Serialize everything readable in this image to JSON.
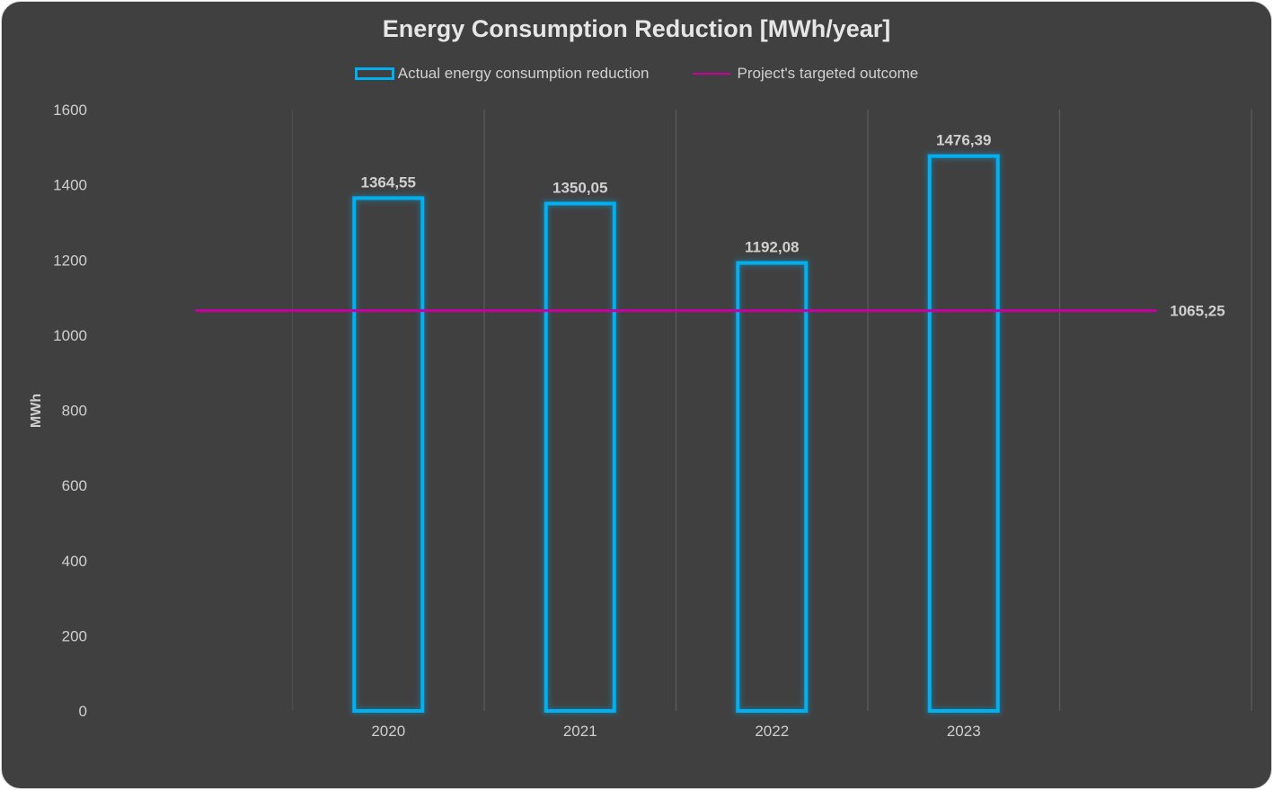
{
  "chart_data": {
    "type": "bar",
    "title": "Energy Consumption Reduction [MWh/year]",
    "ylabel": "MWh",
    "xlabel": "",
    "categories": [
      "2020",
      "2021",
      "2022",
      "2023"
    ],
    "series": [
      {
        "name": "Actual energy consumption reduction",
        "type": "bar",
        "values": [
          1364.55,
          1350.05,
          1192.08,
          1476.39
        ],
        "labels": [
          "1364,55",
          "1350,05",
          "1192,08",
          "1476,39"
        ],
        "color": "#00b0f0"
      },
      {
        "name": "Project's targeted outcome",
        "type": "line",
        "value": 1065.25,
        "label": "1065,25",
        "color": "#c8009f"
      }
    ],
    "ylim": [
      0,
      1600
    ],
    "yticks": [
      "0",
      "200",
      "400",
      "600",
      "800",
      "1000",
      "1200",
      "1400",
      "1600"
    ],
    "grid": true,
    "legend": "top"
  }
}
